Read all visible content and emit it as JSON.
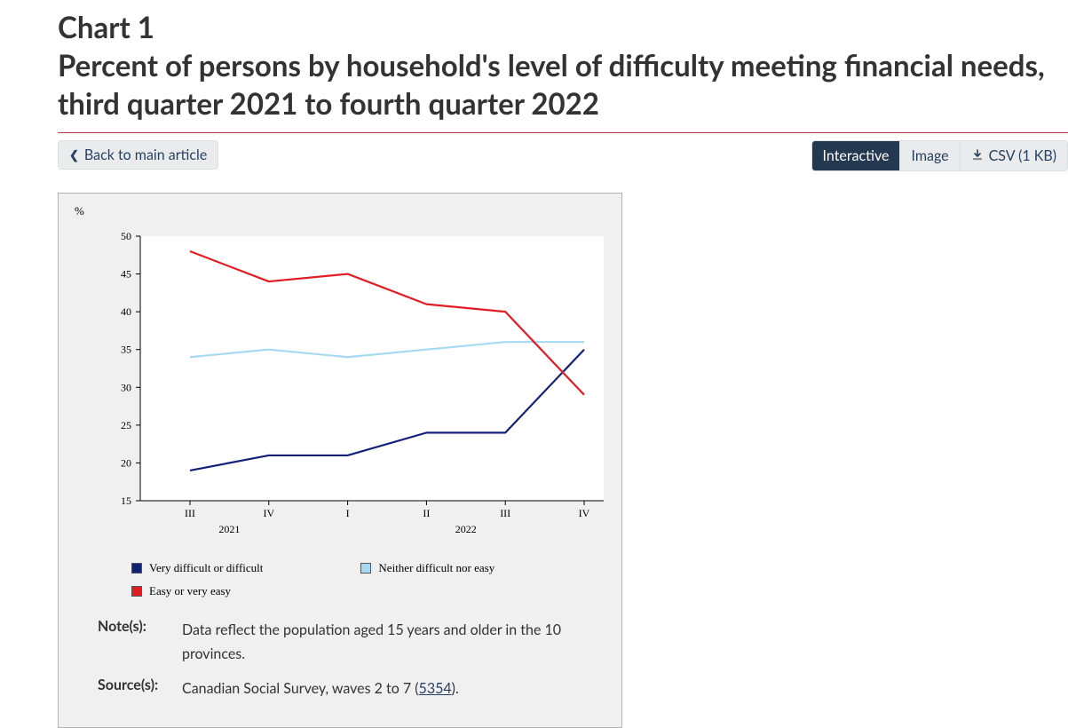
{
  "header": {
    "chart_number": "Chart 1",
    "title": "Percent of persons by household's level of difficulty meeting financial needs, third quarter 2021 to fourth quarter 2022"
  },
  "toolbar": {
    "back_label": "Back to main article",
    "tabs": {
      "interactive": "Interactive",
      "image": "Image",
      "csv": "CSV (1 KB)"
    }
  },
  "chart": {
    "type": "line",
    "y_unit_label": "%",
    "y_axis": {
      "min": 15,
      "max": 50,
      "step": 5
    },
    "x_labels_minor": [
      "III",
      "IV",
      "I",
      "II",
      "III",
      "IV"
    ],
    "x_labels_major": [
      {
        "label": "2021",
        "center_index": 0.5
      },
      {
        "label": "2022",
        "center_index": 3.5
      }
    ],
    "series": [
      {
        "name": "Very difficult or difficult",
        "color": "#13207a",
        "swatch_fill": "#13207a",
        "values": [
          19,
          21,
          21,
          24,
          24,
          35
        ]
      },
      {
        "name": "Neither difficult nor easy",
        "color": "#a7d9f2",
        "swatch_fill": "#a7d9f2",
        "values": [
          34,
          35,
          34,
          35,
          36,
          36
        ]
      },
      {
        "name": "Easy or very easy",
        "color": "#e31b23",
        "swatch_fill": "#e31b23",
        "values": [
          48,
          44,
          45,
          41,
          40,
          29
        ]
      }
    ],
    "plot_style": {
      "background_color": "#ffffff",
      "card_background": "#f0f0f0",
      "axis_color": "#000000",
      "line_width": 2.2,
      "tick_fontsize": 12,
      "legend_fontsize": 13
    }
  },
  "meta": {
    "notes_label": "Note(s):",
    "notes_value": "Data reflect the population aged 15 years and older in the 10 provinces.",
    "sources_label": "Source(s):",
    "sources_prefix": "Canadian Social Survey, waves 2 to 7 (",
    "sources_link_text": "5354",
    "sources_suffix": ")."
  }
}
